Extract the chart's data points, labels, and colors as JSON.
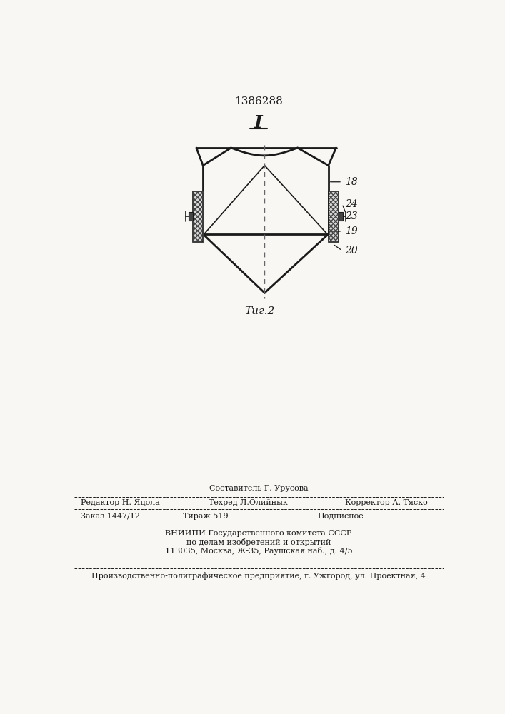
{
  "patent_number": "1386288",
  "figure_label": "I",
  "figure_caption": "Τиг.2",
  "bg_color": "#f8f7f4",
  "line_color": "#1a1a1a",
  "footer": {
    "line1_center": "Составитель Г. Урусова",
    "line2_left": "Редактор Н. Яцола",
    "line2_mid": "Техред Л.Олийнык",
    "line2_right": "Корректор А. Тяско",
    "line3_left": "Заказ 1447/12",
    "line3_mid": "Тираж 519",
    "line3_right": "Подписное",
    "line4": "ВНИИПИ Государственного комитета СССР",
    "line5": "по делам изобретений и открытий",
    "line6": "113035, Москва, Ж-35, Раушская наб., д. 4/5",
    "line7": "Производственно-полиграфическое предприятие, г. Ужгород, ул. Проектная, 4"
  }
}
